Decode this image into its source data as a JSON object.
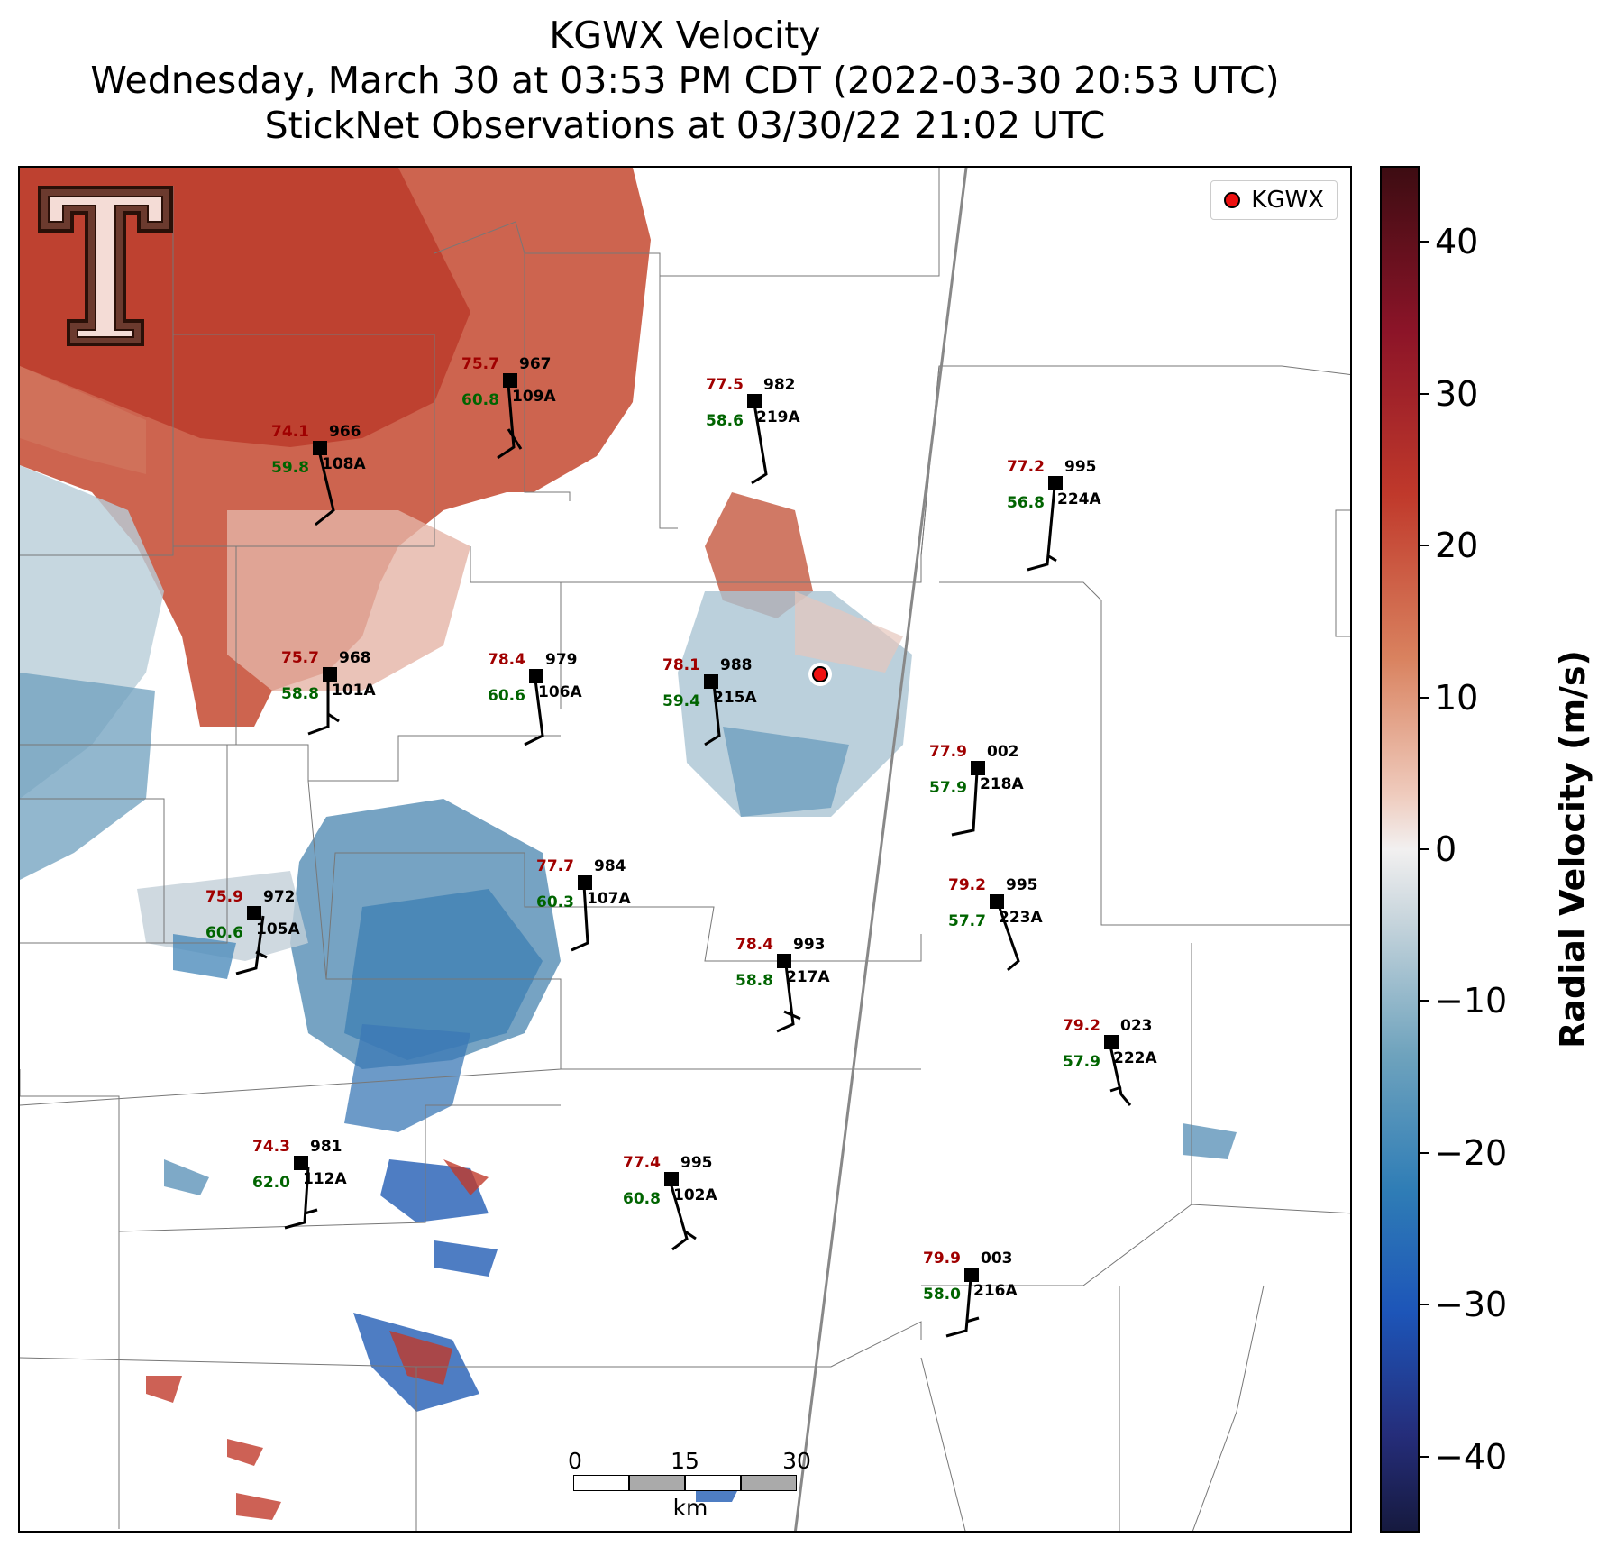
{
  "title": {
    "line1": "KGWX Velocity",
    "line2": "Wednesday, March 30 at 03:53 PM CDT (2022-03-30 20:53 UTC)",
    "line3": "StickNet Observations at 03/30/22 21:02 UTC"
  },
  "legend": {
    "label": "KGWX",
    "marker_color": "#ee1111"
  },
  "colorbar": {
    "title": "Radial Velocity (m/s)",
    "range": [
      -45,
      45
    ],
    "ticks": [
      "40",
      "30",
      "20",
      "10",
      "0",
      "−10",
      "−20",
      "−30",
      "−40"
    ]
  },
  "scalebar": {
    "labels": [
      "0",
      "15",
      "30"
    ],
    "unit": "km"
  },
  "logo": {
    "name": "texas-tech-t-logo"
  },
  "stations": [
    {
      "temp": "75.7",
      "pres": "967",
      "dew": "60.8",
      "id": "109A"
    },
    {
      "temp": "77.5",
      "pres": "982",
      "dew": "58.6",
      "id": "219A"
    },
    {
      "temp": "74.1",
      "pres": "966",
      "dew": "59.8",
      "id": "108A"
    },
    {
      "temp": "77.2",
      "pres": "995",
      "dew": "56.8",
      "id": "224A"
    },
    {
      "temp": "75.7",
      "pres": "968",
      "dew": "58.8",
      "id": "101A"
    },
    {
      "temp": "78.4",
      "pres": "979",
      "dew": "60.6",
      "id": "106A"
    },
    {
      "temp": "78.1",
      "pres": "988",
      "dew": "59.4",
      "id": "215A"
    },
    {
      "temp": "77.9",
      "pres": "002",
      "dew": "57.9",
      "id": "218A"
    },
    {
      "temp": "77.7",
      "pres": "984",
      "dew": "60.3",
      "id": "107A"
    },
    {
      "temp": "79.2",
      "pres": "995",
      "dew": "57.7",
      "id": "223A"
    },
    {
      "temp": "75.9",
      "pres": "972",
      "dew": "60.6",
      "id": "105A"
    },
    {
      "temp": "78.4",
      "pres": "993",
      "dew": "58.8",
      "id": "217A"
    },
    {
      "temp": "79.2",
      "pres": "023",
      "dew": "57.9",
      "id": "222A"
    },
    {
      "temp": "74.3",
      "pres": "981",
      "dew": "62.0",
      "id": "112A"
    },
    {
      "temp": "77.4",
      "pres": "995",
      "dew": "60.8",
      "id": "102A"
    },
    {
      "temp": "79.9",
      "pres": "003",
      "dew": "58.0",
      "id": "216A"
    }
  ]
}
